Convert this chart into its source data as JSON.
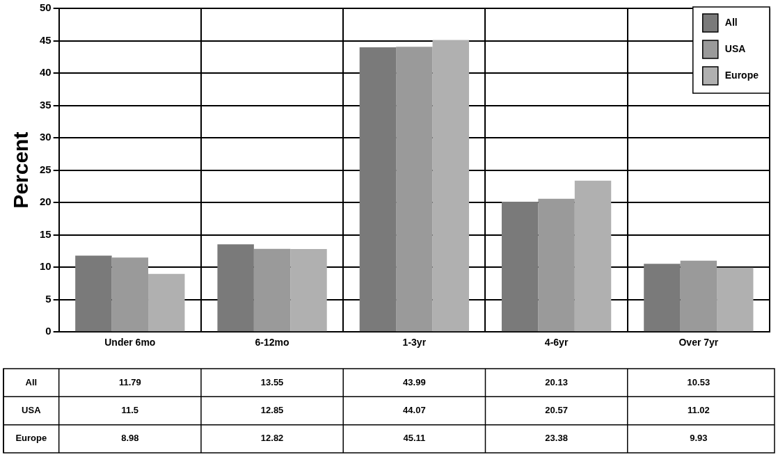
{
  "chart_data": {
    "type": "bar",
    "ylabel": "Percent",
    "categories": [
      "Under 6mo",
      "6-12mo",
      "1-3yr",
      "4-6yr",
      "Over 7yr"
    ],
    "series": [
      {
        "name": "All",
        "color": "#7a7a7a",
        "values": [
          11.79,
          13.55,
          43.99,
          20.13,
          10.53
        ]
      },
      {
        "name": "USA",
        "color": "#9a9a9a",
        "values": [
          11.5,
          12.85,
          44.07,
          20.57,
          11.02
        ]
      },
      {
        "name": "Europe",
        "color": "#b0b0b0",
        "values": [
          8.98,
          12.82,
          45.11,
          23.38,
          9.93
        ]
      }
    ],
    "ylim": [
      0,
      50
    ],
    "yticks": [
      0,
      5,
      10,
      15,
      20,
      25,
      30,
      35,
      40,
      45,
      50
    ],
    "grid": true,
    "legend": "top right",
    "data_labels": true
  }
}
